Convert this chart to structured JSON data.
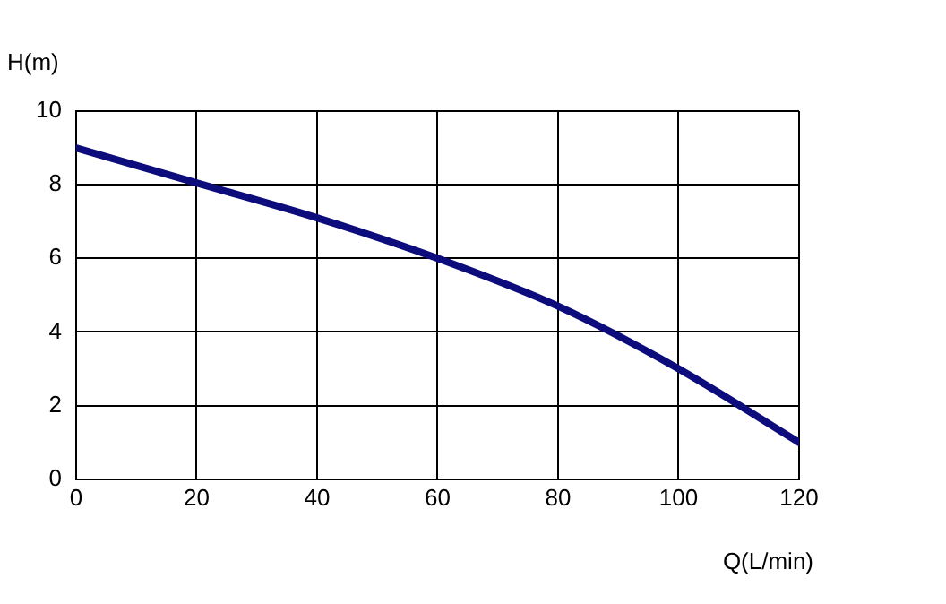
{
  "chart_data": {
    "type": "line",
    "xlabel": "Q(L/min)",
    "ylabel": "H(m)",
    "x": [
      0,
      20,
      40,
      60,
      80,
      100,
      120
    ],
    "series": [
      {
        "color": "#0c0c7c",
        "values": [
          9,
          8.05,
          7.1,
          6,
          4.7,
          3,
          1
        ]
      }
    ],
    "xlim": [
      0,
      120
    ],
    "xticks": [
      0,
      20,
      40,
      60,
      80,
      100,
      120
    ],
    "ylim": [
      0,
      10
    ],
    "yticks": [
      0,
      2,
      4,
      6,
      8,
      10
    ],
    "grid": true,
    "legend": false,
    "marker": "none",
    "line_style": "solid"
  }
}
